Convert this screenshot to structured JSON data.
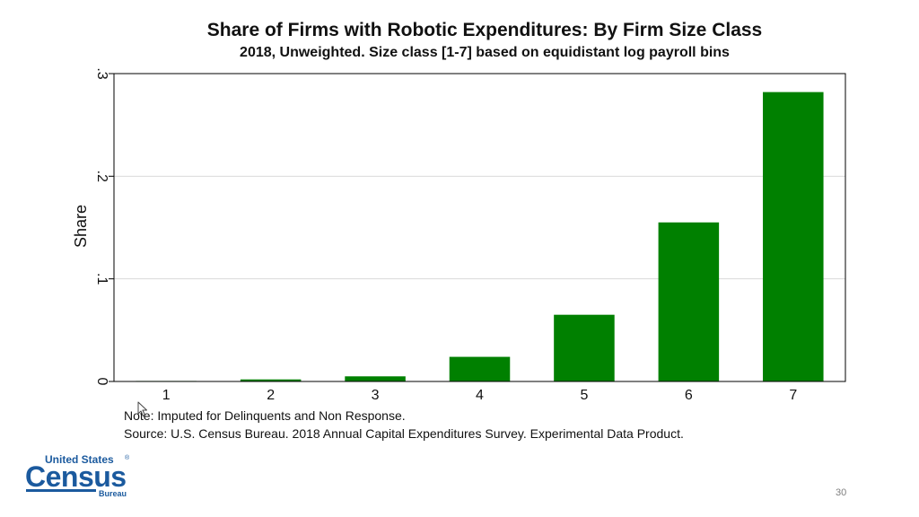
{
  "chart_data": {
    "type": "bar",
    "title": "Share of Firms with Robotic Expenditures: By Firm Size Class",
    "subtitle": "2018, Unweighted. Size class [1-7] based on equidistant log payroll bins",
    "xlabel": "",
    "ylabel": "Share",
    "categories": [
      "1",
      "2",
      "3",
      "4",
      "5",
      "6",
      "7"
    ],
    "values": [
      0.0005,
      0.002,
      0.005,
      0.024,
      0.065,
      0.155,
      0.282
    ],
    "ylim": [
      0,
      0.3
    ],
    "yticks": [
      0,
      0.1,
      0.2,
      0.3
    ],
    "ytick_labels": [
      "0",
      ".1",
      ".2",
      ".3"
    ],
    "grid": true,
    "bar_color": "#008000"
  },
  "notes": {
    "note": "Note: Imputed for Delinquents and Non Response.",
    "source": "Source: U.S. Census Bureau. 2018 Annual Capital Expenditures Survey. Experimental Data Product."
  },
  "logo": {
    "line1": "United States",
    "line2": "Census",
    "line3": "Bureau",
    "color": "#1b5a9e"
  },
  "slide_number": "30",
  "icons": {
    "cursor": "mouse-pointer-icon"
  }
}
